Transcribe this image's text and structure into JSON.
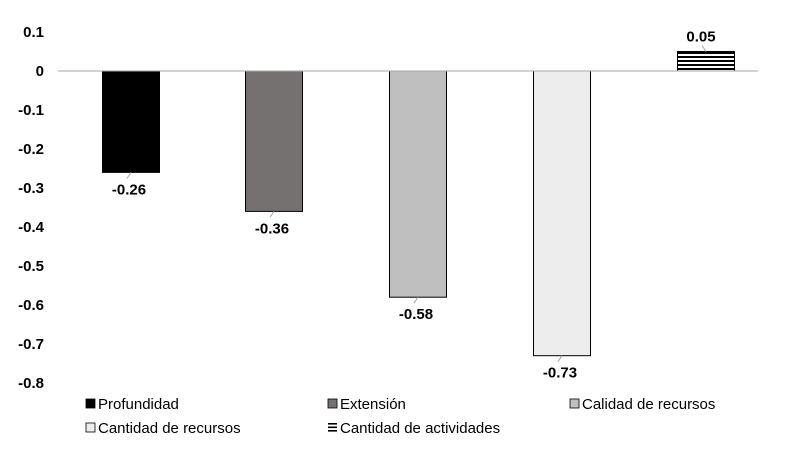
{
  "chart_data": {
    "type": "bar",
    "title": "",
    "xlabel": "",
    "ylabel": "",
    "ylim": [
      -0.8,
      0.1
    ],
    "yticks": [
      0.1,
      0,
      -0.1,
      -0.2,
      -0.3,
      -0.4,
      -0.5,
      -0.6,
      -0.7,
      -0.8
    ],
    "ytick_labels": [
      "0.1",
      "0",
      "-0.1",
      "-0.2",
      "-0.3",
      "-0.4",
      "-0.5",
      "-0.6",
      "-0.7",
      "-0.8"
    ],
    "grid": false,
    "legend_position": "bottom",
    "series": [
      {
        "name": "Profundidad",
        "value": -0.26,
        "label": "-0.26",
        "color": "#000000",
        "pattern": "solid"
      },
      {
        "name": "Extensión",
        "value": -0.36,
        "label": "-0.36",
        "color": "#767171",
        "pattern": "solid"
      },
      {
        "name": "Calidad de recursos",
        "value": -0.58,
        "label": "-0.58",
        "color": "#bfbfbf",
        "pattern": "solid"
      },
      {
        "name": "Cantidad de recursos",
        "value": -0.73,
        "label": "-0.73",
        "color": "#ededed",
        "pattern": "solid"
      },
      {
        "name": "Cantidad de actividades",
        "value": 0.05,
        "label": "0.05",
        "color": "#000000",
        "pattern": "horizontal-lines"
      }
    ]
  }
}
